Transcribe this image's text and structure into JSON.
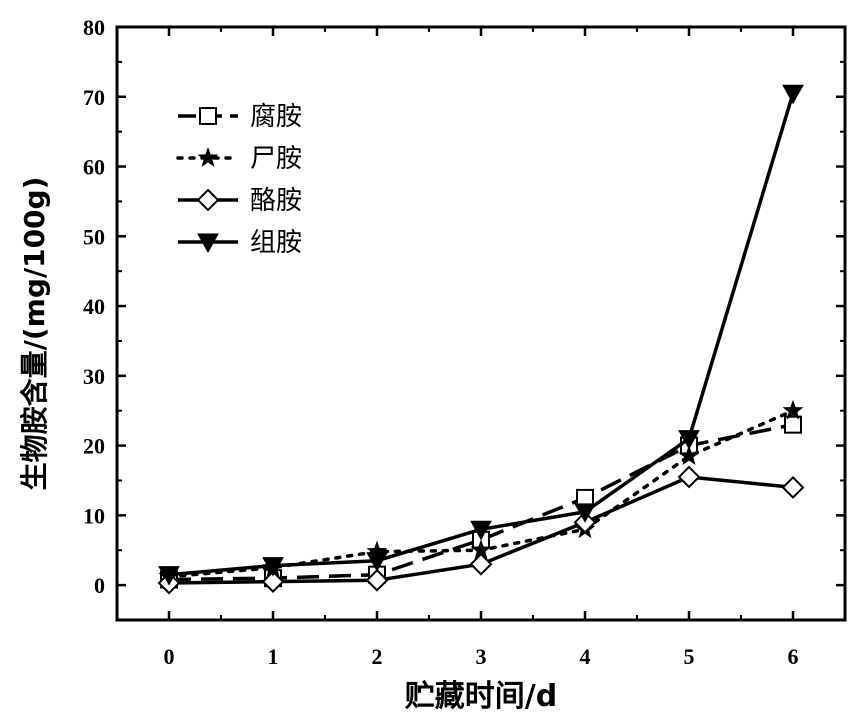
{
  "chart_data": {
    "type": "line",
    "xlabel": "贮藏时间/d",
    "ylabel": "生物胺含量/(mg/100g)",
    "x": [
      0,
      1,
      2,
      3,
      4,
      5,
      6
    ],
    "xlim": [
      -0.5,
      6.5
    ],
    "ylim": [
      -5,
      80
    ],
    "yticks": [
      0,
      10,
      20,
      30,
      40,
      50,
      60,
      70,
      80
    ],
    "xticks": [
      0,
      1,
      2,
      3,
      4,
      5,
      6
    ],
    "legend_position": "top-left",
    "grid": false,
    "series": [
      {
        "name": "腐胺",
        "marker": "square-open",
        "line": "dash",
        "values": [
          0.8,
          1.0,
          1.5,
          6.5,
          12.5,
          20.0,
          23.0
        ]
      },
      {
        "name": "尸胺",
        "marker": "star",
        "line": "dot",
        "values": [
          1.2,
          2.5,
          4.8,
          5.0,
          8.0,
          18.5,
          25.0
        ]
      },
      {
        "name": "酪胺",
        "marker": "diamond-open",
        "line": "solid",
        "values": [
          0.3,
          0.5,
          0.7,
          3.0,
          9.0,
          15.5,
          14.0
        ]
      },
      {
        "name": "组胺",
        "marker": "triangle-down",
        "line": "solid",
        "values": [
          1.5,
          2.8,
          3.5,
          8.0,
          10.5,
          21.0,
          70.5
        ]
      }
    ]
  }
}
